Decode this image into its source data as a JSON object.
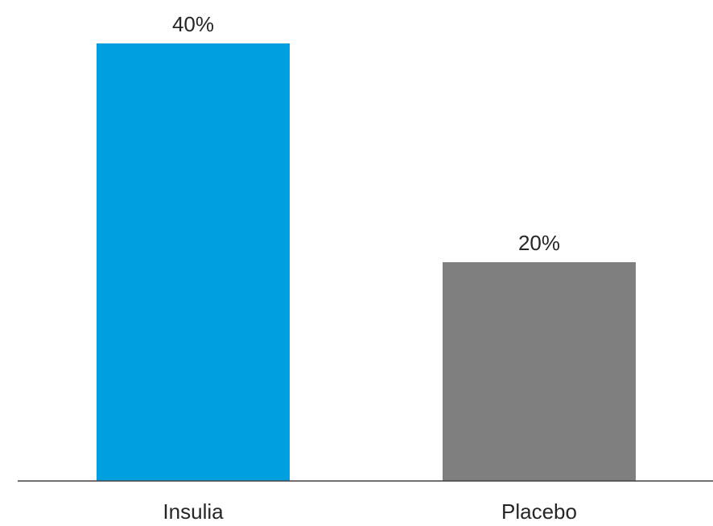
{
  "chart_data": {
    "type": "bar",
    "title": "",
    "xlabel": "",
    "ylabel": "",
    "categories": [
      "Insulia",
      "Placebo"
    ],
    "values": [
      40,
      20
    ],
    "data_labels": [
      "40%",
      "20%"
    ],
    "colors": [
      "#009fdf",
      "#7f7f7f"
    ],
    "axis_color": "#404040",
    "ylim": [
      0,
      40
    ],
    "grid": false,
    "legend": "none"
  }
}
